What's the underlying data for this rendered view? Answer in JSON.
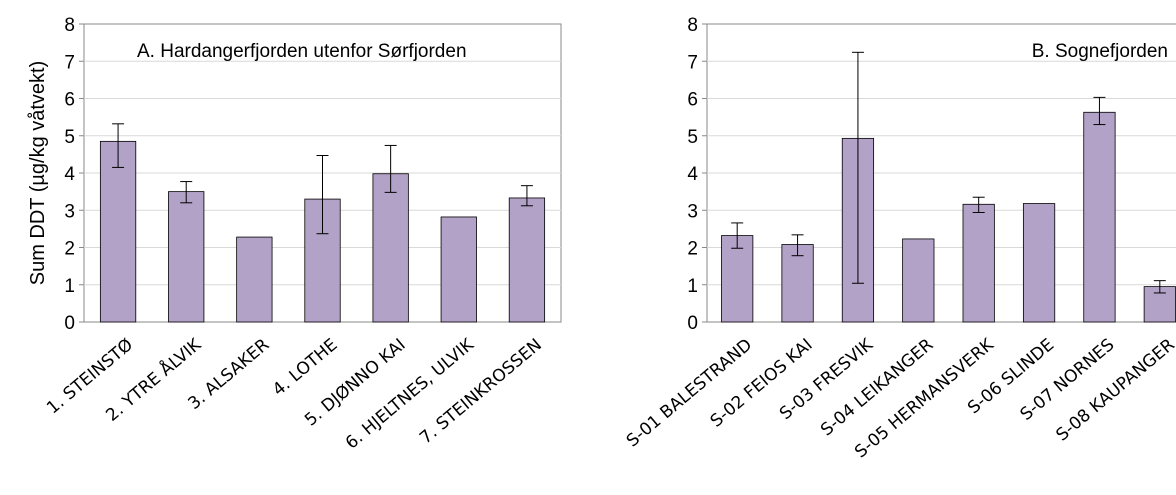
{
  "chart_data": [
    {
      "type": "bar",
      "title": "A. Hardangerfjorden utenfor Sørfjorden",
      "ylabel": "Sum DDT (µg/kg våtvekt)",
      "xlabel": "",
      "ylim": [
        0,
        8
      ],
      "yticks": [
        "0",
        "1",
        "2",
        "3",
        "4",
        "5",
        "6",
        "7",
        "8"
      ],
      "grid": "horizontal",
      "bar_color": "#b3a2c7",
      "categories": [
        "1. STEINSTØ",
        "2. YTRE ÅLVIK",
        "3. ALSAKER",
        "4. LOTHE",
        "5. DJØNNO KAI",
        "6. HJELTNES, ULVIK",
        "7. STEINKROSSEN"
      ],
      "values": [
        4.85,
        3.5,
        2.28,
        3.3,
        3.98,
        2.82,
        3.33
      ],
      "error_low": [
        4.15,
        3.2,
        null,
        2.37,
        3.48,
        null,
        3.12
      ],
      "error_high": [
        5.32,
        3.77,
        null,
        4.47,
        4.74,
        null,
        3.66
      ]
    },
    {
      "type": "bar",
      "title": "B. Sognefjorden",
      "ylabel": "",
      "xlabel": "",
      "ylim": [
        0,
        8
      ],
      "yticks": [
        "0",
        "1",
        "2",
        "3",
        "4",
        "5",
        "6",
        "7",
        "8"
      ],
      "grid": "horizontal",
      "bar_color": "#b3a2c7",
      "categories": [
        "S-01 BALESTRAND",
        "S-02 FEIOS KAI",
        "S-03 FRESVIK",
        "S-04 LEIKANGER",
        "S-05 HERMANSVERK",
        "S-06 SLINDE",
        "S-07 NORNES",
        "S-08 KAUPANGER"
      ],
      "values": [
        2.32,
        2.08,
        4.93,
        2.23,
        3.16,
        3.18,
        5.63,
        0.95
      ],
      "error_low": [
        1.98,
        1.78,
        1.04,
        null,
        2.94,
        null,
        5.3,
        0.78
      ],
      "error_high": [
        2.66,
        2.34,
        7.24,
        null,
        3.35,
        null,
        6.03,
        1.11
      ]
    }
  ]
}
